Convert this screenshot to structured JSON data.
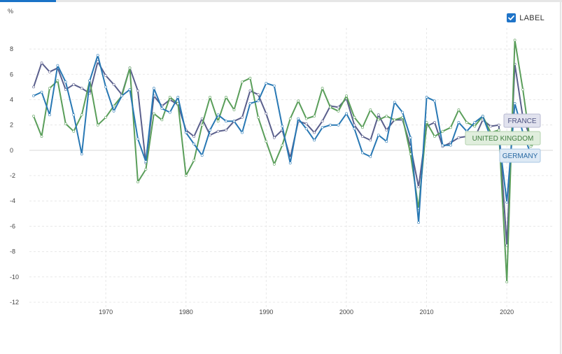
{
  "legend": {
    "label": "LABEL",
    "checked": true
  },
  "colors": {
    "FRANCE": "#5a5f8c",
    "UNITED KINGDOM": "#5a9e5a",
    "GERMANY": "#2878b4",
    "grid": "#e8e8e8",
    "axis_text": "#444444"
  },
  "chart_data": {
    "type": "line",
    "ylabel": "%",
    "xlabel": "",
    "ylim": [
      -12,
      9
    ],
    "yticks": [
      8,
      6,
      4,
      2,
      0,
      -2,
      -4,
      -6,
      -8,
      -10,
      -12
    ],
    "xlim": [
      1961,
      2024
    ],
    "xticks": [
      1970,
      1980,
      1990,
      2000,
      2010,
      2020
    ],
    "grid": true,
    "legend_position": "right, at end of lines",
    "x": [
      1961,
      1962,
      1963,
      1964,
      1965,
      1966,
      1967,
      1968,
      1969,
      1970,
      1971,
      1972,
      1973,
      1974,
      1975,
      1976,
      1977,
      1978,
      1979,
      1980,
      1981,
      1982,
      1983,
      1984,
      1985,
      1986,
      1987,
      1988,
      1989,
      1990,
      1991,
      1992,
      1993,
      1994,
      1995,
      1996,
      1997,
      1998,
      1999,
      2000,
      2001,
      2002,
      2003,
      2004,
      2005,
      2006,
      2007,
      2008,
      2009,
      2010,
      2011,
      2012,
      2013,
      2014,
      2015,
      2016,
      2017,
      2018,
      2019,
      2020,
      2021,
      2022,
      2023,
      2024
    ],
    "series": [
      {
        "name": "FRANCE",
        "values": [
          5.0,
          6.9,
          6.2,
          6.5,
          4.8,
          5.2,
          4.9,
          4.5,
          7.0,
          5.9,
          5.2,
          4.4,
          6.5,
          4.7,
          -1.0,
          4.3,
          3.5,
          4.0,
          3.6,
          1.6,
          1.1,
          2.5,
          1.2,
          1.5,
          1.6,
          2.3,
          2.6,
          4.7,
          4.4,
          2.9,
          1.0,
          1.6,
          -0.6,
          2.3,
          2.1,
          1.4,
          2.3,
          3.5,
          3.4,
          4.1,
          2.0,
          1.1,
          0.8,
          2.8,
          1.6,
          2.4,
          2.4,
          0.3,
          -2.9,
          1.9,
          2.2,
          0.3,
          0.6,
          1.0,
          1.1,
          1.0,
          2.4,
          1.9,
          2.0,
          -7.5,
          6.8,
          2.6,
          0.9,
          1.1
        ]
      },
      {
        "name": "UNITED KINGDOM",
        "values": [
          2.7,
          1.1,
          4.9,
          5.5,
          2.1,
          1.5,
          2.8,
          5.5,
          2.0,
          2.6,
          3.5,
          4.3,
          6.5,
          -2.5,
          -1.5,
          2.9,
          2.4,
          4.2,
          3.7,
          -2.0,
          -0.8,
          2.0,
          4.2,
          2.3,
          4.2,
          3.2,
          5.4,
          5.7,
          2.6,
          0.7,
          -1.1,
          0.4,
          2.5,
          3.9,
          2.5,
          2.7,
          4.9,
          3.4,
          3.1,
          4.3,
          2.6,
          1.8,
          3.2,
          2.4,
          2.7,
          2.4,
          2.6,
          -0.3,
          -4.6,
          2.2,
          1.1,
          1.5,
          1.8,
          3.2,
          2.2,
          1.9,
          2.7,
          1.4,
          1.6,
          -10.4,
          8.7,
          4.8,
          0.3,
          0.9
        ]
      },
      {
        "name": "GERMANY",
        "values": [
          4.3,
          4.6,
          2.8,
          6.7,
          5.4,
          2.8,
          -0.3,
          5.5,
          7.5,
          5.0,
          3.1,
          4.3,
          4.8,
          0.9,
          -0.9,
          4.9,
          3.3,
          3.0,
          4.2,
          1.4,
          0.5,
          -0.4,
          1.6,
          2.8,
          2.3,
          2.3,
          1.4,
          3.7,
          3.9,
          5.3,
          5.1,
          1.9,
          -1.0,
          2.5,
          1.7,
          0.8,
          1.8,
          2.0,
          2.0,
          2.9,
          1.7,
          -0.2,
          -0.5,
          1.2,
          0.7,
          3.8,
          3.0,
          1.0,
          -5.7,
          4.2,
          3.9,
          0.4,
          0.4,
          2.2,
          1.5,
          2.2,
          2.7,
          1.0,
          1.1,
          -4.1,
          3.7,
          1.4,
          -0.3,
          -0.2
        ]
      }
    ]
  }
}
